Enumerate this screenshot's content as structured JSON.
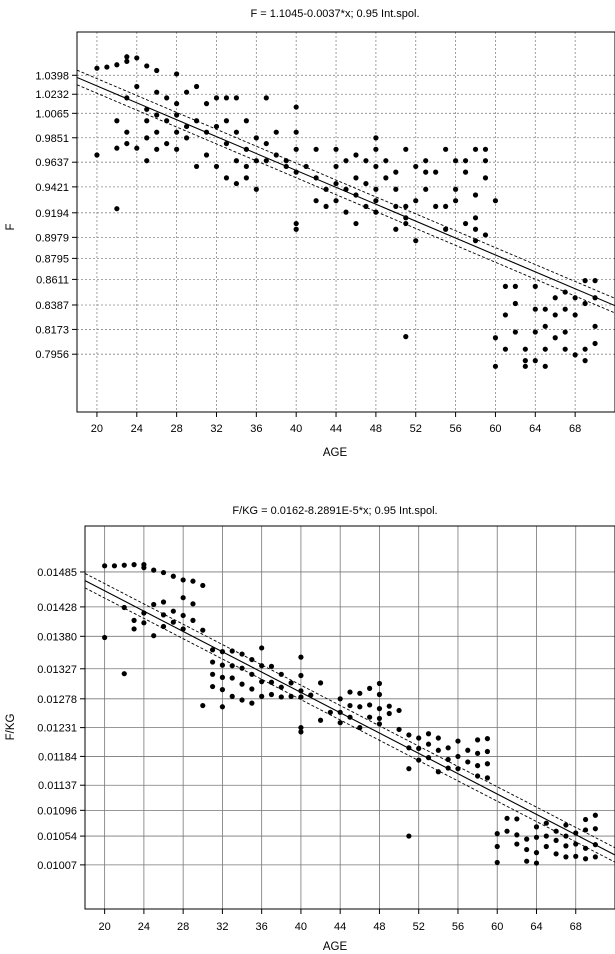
{
  "chart_data": [
    {
      "type": "scatter",
      "title": "F = 1.1045-0.0037*x; 0.95 Int.spol.",
      "xlabel": "AGE",
      "ylabel": "F",
      "xlim": [
        18,
        72
      ],
      "ylim": [
        0.745,
        1.0777
      ],
      "xticks": [
        20,
        24,
        28,
        32,
        36,
        40,
        44,
        48,
        52,
        56,
        60,
        64,
        68
      ],
      "yticks": [
        "0.7956",
        "0.8173",
        "0.8387",
        "0.8611",
        "0.8795",
        "0.8979",
        "0.9194",
        "0.9421",
        "0.9637",
        "0.9851",
        "1.0065",
        "1.0232",
        "1.0398"
      ],
      "grid": "dotted",
      "regression": {
        "intercept": 1.1045,
        "slope": -0.0037,
        "ci_halfwidth": 0.006,
        "ci_spread": 0.0004
      },
      "points": [
        [
          20,
          0.97
        ],
        [
          20,
          1.046
        ],
        [
          21,
          1.047
        ],
        [
          22,
          1.049
        ],
        [
          23,
          1.052
        ],
        [
          23,
          1.056
        ],
        [
          24,
          1.055
        ],
        [
          25,
          1.048
        ],
        [
          26,
          1.044
        ],
        [
          28,
          1.041
        ],
        [
          22,
          1.0
        ],
        [
          22,
          0.976
        ],
        [
          22,
          0.923
        ],
        [
          23,
          0.99
        ],
        [
          23,
          0.98
        ],
        [
          23,
          1.02
        ],
        [
          24,
          0.976
        ],
        [
          24,
          1.03
        ],
        [
          25,
          1.01
        ],
        [
          25,
          1.0
        ],
        [
          25,
          0.985
        ],
        [
          25,
          0.965
        ],
        [
          26,
          1.025
        ],
        [
          26,
          1.005
        ],
        [
          26,
          0.99
        ],
        [
          26,
          0.975
        ],
        [
          27,
          1.0
        ],
        [
          27,
          0.98
        ],
        [
          27,
          1.02
        ],
        [
          28,
          1.005
        ],
        [
          28,
          0.99
        ],
        [
          28,
          0.975
        ],
        [
          28,
          1.015
        ],
        [
          29,
          0.995
        ],
        [
          29,
          0.985
        ],
        [
          29,
          1.025
        ],
        [
          30,
          1.03
        ],
        [
          30,
          1.0
        ],
        [
          30,
          0.96
        ],
        [
          31,
          0.99
        ],
        [
          31,
          0.97
        ],
        [
          31,
          1.015
        ],
        [
          32,
          1.02
        ],
        [
          32,
          0.96
        ],
        [
          32,
          0.995
        ],
        [
          33,
          0.95
        ],
        [
          33,
          0.98
        ],
        [
          33,
          1.0
        ],
        [
          33,
          1.02
        ],
        [
          34,
          0.945
        ],
        [
          34,
          0.965
        ],
        [
          34,
          0.99
        ],
        [
          34,
          1.02
        ],
        [
          35,
          0.96
        ],
        [
          35,
          0.975
        ],
        [
          35,
          0.95
        ],
        [
          35,
          1.0
        ],
        [
          36,
          0.94
        ],
        [
          36,
          0.965
        ],
        [
          36,
          0.985
        ],
        [
          37,
          1.02
        ],
        [
          37,
          0.98
        ],
        [
          37,
          0.965
        ],
        [
          38,
          0.97
        ],
        [
          38,
          0.99
        ],
        [
          39,
          0.965
        ],
        [
          39,
          0.96
        ],
        [
          40,
          0.91
        ],
        [
          40,
          0.905
        ],
        [
          40,
          0.955
        ],
        [
          40,
          0.975
        ],
        [
          40,
          1.012
        ],
        [
          40,
          0.99
        ],
        [
          41,
          0.96
        ],
        [
          42,
          0.93
        ],
        [
          42,
          0.975
        ],
        [
          42,
          0.95
        ],
        [
          43,
          0.94
        ],
        [
          43,
          0.925
        ],
        [
          44,
          0.93
        ],
        [
          44,
          0.945
        ],
        [
          44,
          0.96
        ],
        [
          44,
          0.975
        ],
        [
          45,
          0.94
        ],
        [
          45,
          0.92
        ],
        [
          45,
          0.965
        ],
        [
          46,
          0.935
        ],
        [
          46,
          0.95
        ],
        [
          46,
          0.97
        ],
        [
          46,
          0.91
        ],
        [
          47,
          0.945
        ],
        [
          47,
          0.925
        ],
        [
          47,
          0.965
        ],
        [
          48,
          0.92
        ],
        [
          48,
          0.93
        ],
        [
          48,
          0.94
        ],
        [
          48,
          0.96
        ],
        [
          48,
          0.975
        ],
        [
          48,
          0.985
        ],
        [
          49,
          0.95
        ],
        [
          49,
          0.965
        ],
        [
          50,
          0.94
        ],
        [
          50,
          0.955
        ],
        [
          50,
          0.925
        ],
        [
          50,
          0.905
        ],
        [
          51,
          0.915
        ],
        [
          51,
          0.91
        ],
        [
          51,
          0.925
        ],
        [
          51,
          0.975
        ],
        [
          51,
          0.811
        ],
        [
          52,
          0.895
        ],
        [
          52,
          0.93
        ],
        [
          52,
          0.96
        ],
        [
          53,
          0.955
        ],
        [
          53,
          0.965
        ],
        [
          53,
          0.94
        ],
        [
          54,
          0.925
        ],
        [
          54,
          0.955
        ],
        [
          55,
          0.905
        ],
        [
          55,
          0.925
        ],
        [
          55,
          0.975
        ],
        [
          56,
          0.93
        ],
        [
          56,
          0.94
        ],
        [
          56,
          0.965
        ],
        [
          57,
          0.91
        ],
        [
          57,
          0.955
        ],
        [
          57,
          0.965
        ],
        [
          58,
          0.895
        ],
        [
          58,
          0.905
        ],
        [
          58,
          0.915
        ],
        [
          58,
          0.935
        ],
        [
          58,
          0.975
        ],
        [
          59,
          0.9
        ],
        [
          59,
          0.95
        ],
        [
          59,
          0.965
        ],
        [
          59,
          0.975
        ],
        [
          60,
          0.93
        ],
        [
          60,
          0.81
        ],
        [
          60,
          0.785
        ],
        [
          61,
          0.8
        ],
        [
          61,
          0.83
        ],
        [
          61,
          0.855
        ],
        [
          62,
          0.855
        ],
        [
          62,
          0.84
        ],
        [
          62,
          0.815
        ],
        [
          63,
          0.8
        ],
        [
          63,
          0.79
        ],
        [
          63,
          0.785
        ],
        [
          64,
          0.79
        ],
        [
          64,
          0.815
        ],
        [
          64,
          0.835
        ],
        [
          64,
          0.855
        ],
        [
          65,
          0.785
        ],
        [
          65,
          0.8
        ],
        [
          65,
          0.82
        ],
        [
          65,
          0.835
        ],
        [
          66,
          0.81
        ],
        [
          66,
          0.83
        ],
        [
          66,
          0.845
        ],
        [
          67,
          0.8
        ],
        [
          67,
          0.815
        ],
        [
          67,
          0.835
        ],
        [
          67,
          0.85
        ],
        [
          68,
          0.83
        ],
        [
          68,
          0.845
        ],
        [
          68,
          0.795
        ],
        [
          69,
          0.84
        ],
        [
          69,
          0.86
        ],
        [
          69,
          0.79
        ],
        [
          69,
          0.8
        ],
        [
          70,
          0.805
        ],
        [
          70,
          0.86
        ],
        [
          70,
          0.845
        ],
        [
          70,
          0.82
        ]
      ]
    },
    {
      "type": "scatter",
      "title": "F/KG = 0.0162-8.2891E-5*x; 0.95 Int.spol.",
      "xlabel": "AGE",
      "ylabel": "F/KG",
      "xlim": [
        18,
        72
      ],
      "ylim": [
        0.00935,
        0.0156
      ],
      "xticks": [
        20,
        24,
        28,
        32,
        36,
        40,
        44,
        48,
        52,
        56,
        60,
        64,
        68
      ],
      "yticks": [
        "0.01007",
        "0.01054",
        "0.01096",
        "0.01137",
        "0.01184",
        "0.01231",
        "0.01278",
        "0.01327",
        "0.01380",
        "0.01428",
        "0.01485"
      ],
      "grid": "solid",
      "regression": {
        "intercept": 0.0162,
        "slope": -8.2891e-05,
        "ci_halfwidth": 0.00011,
        "ci_spread": 8e-06
      },
      "points": [
        [
          20,
          0.01495
        ],
        [
          21,
          0.01495
        ],
        [
          22,
          0.01496
        ],
        [
          23,
          0.01497
        ],
        [
          24,
          0.01497
        ],
        [
          24,
          0.01492
        ],
        [
          25,
          0.01488
        ],
        [
          26,
          0.01484
        ],
        [
          27,
          0.01478
        ],
        [
          28,
          0.01472
        ],
        [
          29,
          0.0147
        ],
        [
          30,
          0.01463
        ],
        [
          20,
          0.01378
        ],
        [
          22,
          0.01319
        ],
        [
          22,
          0.01427
        ],
        [
          23,
          0.01406
        ],
        [
          23,
          0.01392
        ],
        [
          24,
          0.01418
        ],
        [
          24,
          0.01402
        ],
        [
          25,
          0.01432
        ],
        [
          25,
          0.01381
        ],
        [
          26,
          0.01436
        ],
        [
          26,
          0.01415
        ],
        [
          26,
          0.01396
        ],
        [
          27,
          0.01421
        ],
        [
          27,
          0.01403
        ],
        [
          28,
          0.01443
        ],
        [
          28,
          0.01414
        ],
        [
          28,
          0.01392
        ],
        [
          29,
          0.01433
        ],
        [
          29,
          0.01406
        ],
        [
          30,
          0.0139
        ],
        [
          30,
          0.01267
        ],
        [
          31,
          0.01358
        ],
        [
          31,
          0.01338
        ],
        [
          31,
          0.01318
        ],
        [
          31,
          0.01298
        ],
        [
          32,
          0.01355
        ],
        [
          32,
          0.01333
        ],
        [
          32,
          0.01313
        ],
        [
          32,
          0.01293
        ],
        [
          32,
          0.01265
        ],
        [
          33,
          0.01356
        ],
        [
          33,
          0.01332
        ],
        [
          33,
          0.01312
        ],
        [
          33,
          0.01282
        ],
        [
          34,
          0.01351
        ],
        [
          34,
          0.01328
        ],
        [
          34,
          0.01302
        ],
        [
          34,
          0.01276
        ],
        [
          35,
          0.01342
        ],
        [
          35,
          0.01318
        ],
        [
          35,
          0.01294
        ],
        [
          35,
          0.01271
        ],
        [
          36,
          0.01361
        ],
        [
          36,
          0.01332
        ],
        [
          36,
          0.01306
        ],
        [
          36,
          0.01282
        ],
        [
          37,
          0.01331
        ],
        [
          37,
          0.01305
        ],
        [
          37,
          0.01285
        ],
        [
          38,
          0.01318
        ],
        [
          38,
          0.01297
        ],
        [
          38,
          0.01281
        ],
        [
          39,
          0.01304
        ],
        [
          39,
          0.01282
        ],
        [
          40,
          0.01291
        ],
        [
          40,
          0.01281
        ],
        [
          40,
          0.01231
        ],
        [
          40,
          0.01224
        ],
        [
          40,
          0.01346
        ],
        [
          40,
          0.01316
        ],
        [
          41,
          0.01284
        ],
        [
          42,
          0.01304
        ],
        [
          42,
          0.01243
        ],
        [
          43,
          0.01256
        ],
        [
          44,
          0.01278
        ],
        [
          44,
          0.01256
        ],
        [
          44,
          0.01239
        ],
        [
          45,
          0.01289
        ],
        [
          45,
          0.01267
        ],
        [
          45,
          0.01248
        ],
        [
          46,
          0.01287
        ],
        [
          46,
          0.01265
        ],
        [
          46,
          0.01231
        ],
        [
          47,
          0.01295
        ],
        [
          47,
          0.01268
        ],
        [
          47,
          0.01248
        ],
        [
          48,
          0.01303
        ],
        [
          48,
          0.01285
        ],
        [
          48,
          0.01262
        ],
        [
          48,
          0.01246
        ],
        [
          48,
          0.01237
        ],
        [
          49,
          0.01266
        ],
        [
          49,
          0.01254
        ],
        [
          50,
          0.01259
        ],
        [
          50,
          0.01228
        ],
        [
          51,
          0.01219
        ],
        [
          51,
          0.01198
        ],
        [
          51,
          0.01164
        ],
        [
          51,
          0.01054
        ],
        [
          52,
          0.01214
        ],
        [
          52,
          0.01197
        ],
        [
          52,
          0.01178
        ],
        [
          53,
          0.01221
        ],
        [
          53,
          0.01204
        ],
        [
          53,
          0.01182
        ],
        [
          54,
          0.01214
        ],
        [
          54,
          0.01194
        ],
        [
          54,
          0.01159
        ],
        [
          55,
          0.01198
        ],
        [
          55,
          0.01179
        ],
        [
          55,
          0.01165
        ],
        [
          56,
          0.01209
        ],
        [
          56,
          0.01184
        ],
        [
          56,
          0.01164
        ],
        [
          57,
          0.01194
        ],
        [
          57,
          0.01175
        ],
        [
          58,
          0.01211
        ],
        [
          58,
          0.01189
        ],
        [
          58,
          0.01169
        ],
        [
          58,
          0.01152
        ],
        [
          59,
          0.01213
        ],
        [
          59,
          0.01192
        ],
        [
          59,
          0.01172
        ],
        [
          59,
          0.01149
        ],
        [
          60,
          0.01058
        ],
        [
          60,
          0.01037
        ],
        [
          60,
          0.01011
        ],
        [
          61,
          0.01083
        ],
        [
          61,
          0.01062
        ],
        [
          62,
          0.01082
        ],
        [
          62,
          0.01056
        ],
        [
          62,
          0.01041
        ],
        [
          63,
          0.01049
        ],
        [
          63,
          0.01032
        ],
        [
          63,
          0.01013
        ],
        [
          64,
          0.01069
        ],
        [
          64,
          0.01052
        ],
        [
          64,
          0.01027
        ],
        [
          64,
          0.0101
        ],
        [
          65,
          0.01075
        ],
        [
          65,
          0.01054
        ],
        [
          65,
          0.01037
        ],
        [
          66,
          0.01062
        ],
        [
          66,
          0.01047
        ],
        [
          66,
          0.01025
        ],
        [
          67,
          0.01072
        ],
        [
          67,
          0.01054
        ],
        [
          67,
          0.01038
        ],
        [
          67,
          0.0102
        ],
        [
          68,
          0.01059
        ],
        [
          68,
          0.01041
        ],
        [
          68,
          0.01021
        ],
        [
          69,
          0.01081
        ],
        [
          69,
          0.01064
        ],
        [
          69,
          0.01034
        ],
        [
          69,
          0.01017
        ],
        [
          70,
          0.01088
        ],
        [
          70,
          0.01066
        ],
        [
          70,
          0.0104
        ],
        [
          70,
          0.0102
        ]
      ]
    }
  ]
}
